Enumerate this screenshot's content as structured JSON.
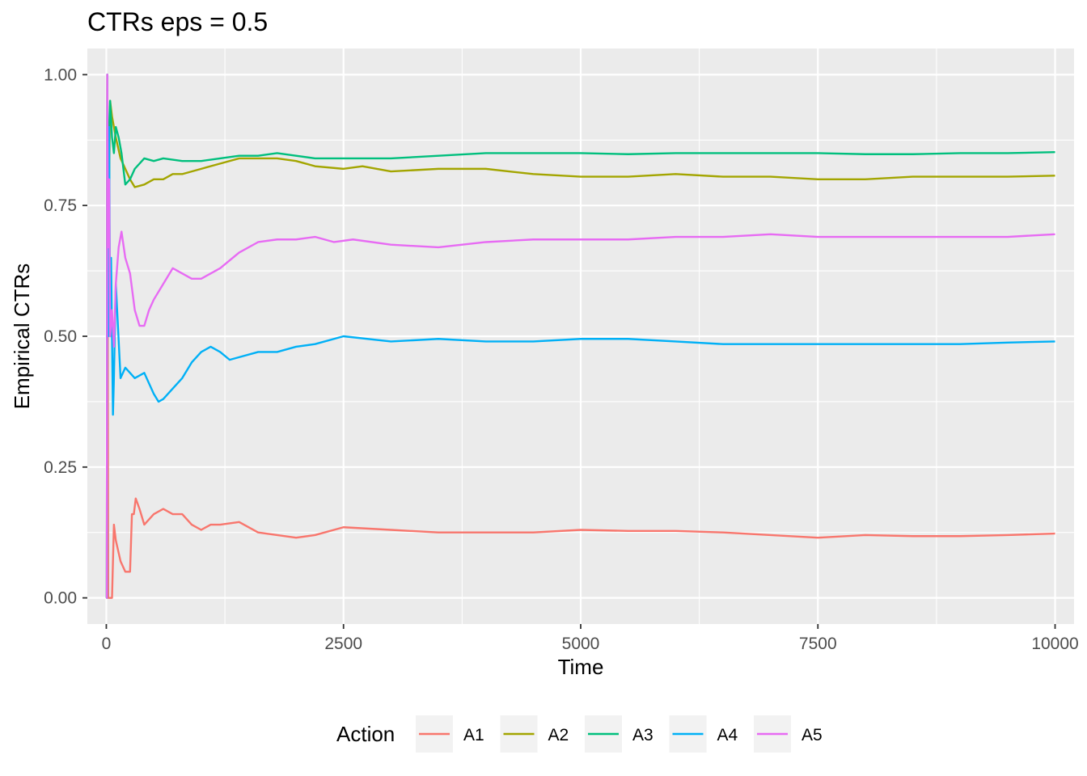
{
  "chart_data": {
    "type": "line",
    "title": "CTRs eps = 0.5",
    "xlabel": "Time",
    "ylabel": "Empirical CTRs",
    "xlim": [
      -200,
      10200
    ],
    "ylim": [
      -0.05,
      1.05
    ],
    "x_ticks": [
      0,
      2500,
      5000,
      7500,
      10000
    ],
    "x_tick_labels": [
      "0",
      "2500",
      "5000",
      "7500",
      "10000"
    ],
    "y_ticks": [
      0,
      0.25,
      0.5,
      0.75,
      1.0
    ],
    "y_tick_labels": [
      "0.00",
      "0.25",
      "0.50",
      "0.75",
      "1.00"
    ],
    "grid": true,
    "legend_title": "Action",
    "legend_position": "bottom",
    "series": [
      {
        "name": "A1",
        "color": "#F8766D",
        "x": [
          0,
          5,
          10,
          20,
          30,
          40,
          60,
          80,
          100,
          150,
          200,
          250,
          270,
          290,
          310,
          350,
          400,
          500,
          600,
          700,
          800,
          900,
          1000,
          1100,
          1200,
          1400,
          1600,
          1800,
          2000,
          2200,
          2500,
          3000,
          3500,
          4000,
          4500,
          5000,
          5500,
          6000,
          6500,
          7000,
          7500,
          8000,
          8500,
          9000,
          9500,
          10000
        ],
        "y": [
          0,
          0,
          1.0,
          0,
          0,
          0,
          0,
          0.14,
          0.11,
          0.07,
          0.05,
          0.05,
          0.16,
          0.16,
          0.19,
          0.17,
          0.14,
          0.16,
          0.17,
          0.16,
          0.16,
          0.14,
          0.13,
          0.14,
          0.14,
          0.145,
          0.125,
          0.12,
          0.115,
          0.12,
          0.135,
          0.13,
          0.125,
          0.125,
          0.125,
          0.13,
          0.128,
          0.128,
          0.125,
          0.12,
          0.115,
          0.12,
          0.118,
          0.118,
          0.12,
          0.123
        ]
      },
      {
        "name": "A2",
        "color": "#A3A500",
        "x": [
          0,
          5,
          10,
          20,
          30,
          40,
          60,
          80,
          100,
          150,
          200,
          250,
          300,
          400,
          500,
          600,
          700,
          800,
          1000,
          1200,
          1400,
          1600,
          1800,
          2000,
          2200,
          2500,
          2700,
          3000,
          3500,
          4000,
          4500,
          5000,
          5500,
          6000,
          6500,
          7000,
          7500,
          8000,
          8500,
          9000,
          9500,
          10000
        ],
        "y": [
          0,
          0,
          1.0,
          0.5,
          0.8,
          0.95,
          0.92,
          0.9,
          0.88,
          0.84,
          0.82,
          0.8,
          0.785,
          0.79,
          0.8,
          0.8,
          0.81,
          0.81,
          0.82,
          0.83,
          0.84,
          0.84,
          0.84,
          0.835,
          0.825,
          0.82,
          0.825,
          0.815,
          0.82,
          0.82,
          0.81,
          0.805,
          0.805,
          0.81,
          0.805,
          0.805,
          0.8,
          0.8,
          0.805,
          0.805,
          0.805,
          0.807
        ]
      },
      {
        "name": "A3",
        "color": "#00BF7D",
        "x": [
          0,
          5,
          10,
          20,
          30,
          40,
          60,
          80,
          100,
          130,
          160,
          200,
          250,
          300,
          400,
          500,
          600,
          800,
          1000,
          1200,
          1400,
          1600,
          1800,
          2000,
          2200,
          2500,
          3000,
          3500,
          4000,
          4500,
          5000,
          5500,
          6000,
          6500,
          7000,
          7500,
          8000,
          8500,
          9000,
          9500,
          10000
        ],
        "y": [
          0,
          0,
          0.6,
          0.85,
          0.9,
          0.95,
          0.88,
          0.85,
          0.9,
          0.88,
          0.85,
          0.79,
          0.8,
          0.82,
          0.84,
          0.835,
          0.84,
          0.835,
          0.835,
          0.84,
          0.845,
          0.845,
          0.85,
          0.845,
          0.84,
          0.84,
          0.84,
          0.845,
          0.85,
          0.85,
          0.85,
          0.848,
          0.85,
          0.85,
          0.85,
          0.85,
          0.848,
          0.848,
          0.85,
          0.85,
          0.852
        ]
      },
      {
        "name": "A4",
        "color": "#00B0F6",
        "x": [
          0,
          5,
          10,
          20,
          30,
          40,
          50,
          60,
          70,
          80,
          100,
          150,
          200,
          300,
          400,
          500,
          550,
          600,
          700,
          800,
          900,
          1000,
          1100,
          1200,
          1300,
          1400,
          1600,
          1800,
          2000,
          2200,
          2500,
          3000,
          3500,
          4000,
          4500,
          5000,
          5500,
          6000,
          6500,
          7000,
          7500,
          8000,
          8500,
          9000,
          9500,
          10000
        ],
        "y": [
          0,
          0,
          1.0,
          0.5,
          0.9,
          0.5,
          0.65,
          0.5,
          0.35,
          0.42,
          0.6,
          0.42,
          0.44,
          0.42,
          0.43,
          0.39,
          0.375,
          0.38,
          0.4,
          0.42,
          0.45,
          0.47,
          0.48,
          0.47,
          0.455,
          0.46,
          0.47,
          0.47,
          0.48,
          0.485,
          0.5,
          0.49,
          0.495,
          0.49,
          0.49,
          0.495,
          0.495,
          0.49,
          0.485,
          0.485,
          0.485,
          0.485,
          0.485,
          0.485,
          0.488,
          0.49
        ]
      },
      {
        "name": "A5",
        "color": "#E76BF3",
        "x": [
          0,
          5,
          10,
          15,
          20,
          30,
          40,
          60,
          80,
          100,
          130,
          160,
          200,
          250,
          300,
          350,
          400,
          450,
          500,
          600,
          700,
          800,
          900,
          1000,
          1100,
          1200,
          1400,
          1600,
          1800,
          2000,
          2200,
          2400,
          2600,
          3000,
          3500,
          4000,
          4500,
          5000,
          5500,
          6000,
          6500,
          7000,
          7500,
          8000,
          8500,
          9000,
          9500,
          10000
        ],
        "y": [
          0,
          0,
          1.0,
          0.8,
          0.67,
          0.8,
          0.5,
          0.55,
          0.48,
          0.6,
          0.67,
          0.7,
          0.65,
          0.62,
          0.55,
          0.52,
          0.52,
          0.55,
          0.57,
          0.6,
          0.63,
          0.62,
          0.61,
          0.61,
          0.62,
          0.63,
          0.66,
          0.68,
          0.685,
          0.685,
          0.69,
          0.68,
          0.685,
          0.675,
          0.67,
          0.68,
          0.685,
          0.685,
          0.685,
          0.69,
          0.69,
          0.695,
          0.69,
          0.69,
          0.69,
          0.69,
          0.69,
          0.695
        ]
      }
    ]
  }
}
